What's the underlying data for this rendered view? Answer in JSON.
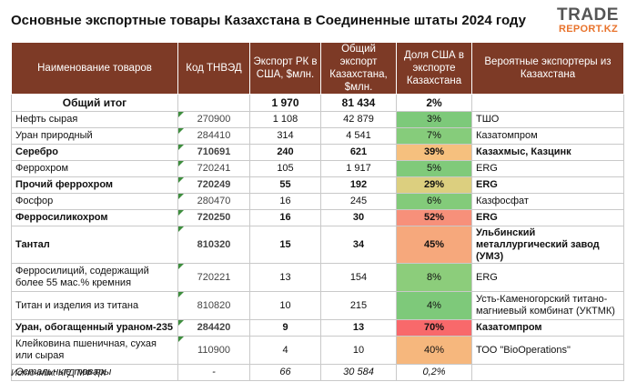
{
  "title": "Основные экспортные товары Казахстана в Соединенные штаты 2024 году",
  "logo": {
    "line1": "TRADE",
    "line2": "REPORT.KZ"
  },
  "chart_data": {
    "type": "table",
    "columns": [
      "Наименование товаров",
      "Код ТНВЭД",
      "Экспорт РК в США, $млн.",
      "Общий экспорт Казахстана, $млн.",
      "Доля США в экспорте Казахстана",
      "Вероятные экспортеры из Казахстана"
    ],
    "rows": [
      {
        "name": "Общий итог",
        "code": "",
        "us": "1 970",
        "total": "81 434",
        "share": "2%",
        "exporters": "",
        "kind": "total",
        "color": ""
      },
      {
        "name": "Нефть сырая",
        "code": "270900",
        "us": "1 108",
        "total": "42 879",
        "share": "3%",
        "exporters": "ТШО",
        "kind": "normal",
        "color": "#7dc97a"
      },
      {
        "name": "Уран природный",
        "code": "284410",
        "us": "314",
        "total": "4 541",
        "share": "7%",
        "exporters": "Казатомпром",
        "kind": "normal",
        "color": "#86cc7b"
      },
      {
        "name": "Серебро",
        "code": "710691",
        "us": "240",
        "total": "621",
        "share": "39%",
        "exporters": "Казахмыс, Казцинк",
        "kind": "bold",
        "color": "#f6c07e"
      },
      {
        "name": "Феррохром",
        "code": "720241",
        "us": "105",
        "total": "1 917",
        "share": "5%",
        "exporters": "ERG",
        "kind": "normal",
        "color": "#80ca7a"
      },
      {
        "name": "Прочий феррохром",
        "code": "720249",
        "us": "55",
        "total": "192",
        "share": "29%",
        "exporters": "ERG",
        "kind": "bold",
        "color": "#dccf7f"
      },
      {
        "name": "Фосфор",
        "code": "280470",
        "us": "16",
        "total": "245",
        "share": "6%",
        "exporters": "Казфосфат",
        "kind": "normal",
        "color": "#83cb7a"
      },
      {
        "name": "Ферросиликохром",
        "code": "720250",
        "us": "16",
        "total": "30",
        "share": "52%",
        "exporters": "ERG",
        "kind": "bold",
        "color": "#f7907a"
      },
      {
        "name": "Тантал",
        "code": "810320",
        "us": "15",
        "total": "34",
        "share": "45%",
        "exporters": "Ульбинский металлургический завод (УМЗ)",
        "kind": "bold",
        "color": "#f6a87c",
        "h": "r3"
      },
      {
        "name": "Ферросилиций, содержащий более 55 мас.% кремния",
        "code": "720221",
        "us": "13",
        "total": "154",
        "share": "8%",
        "exporters": "ERG",
        "kind": "normal",
        "color": "#8ccd7b",
        "h": "r2"
      },
      {
        "name": "Титан и изделия из титана",
        "code": "810820",
        "us": "10",
        "total": "215",
        "share": "4%",
        "exporters": "Усть-Каменогорский титано-магниевый комбинат (УКТМК)",
        "kind": "normal",
        "color": "#7ec97a",
        "h": "r2"
      },
      {
        "name": "Уран, обогащенный ураном-235",
        "code": "284420",
        "us": "9",
        "total": "13",
        "share": "70%",
        "exporters": "Казатомпром",
        "kind": "bold",
        "color": "#f8696b"
      },
      {
        "name": "Клейковина пшеничная, сухая или сырая",
        "code": "110900",
        "us": "4",
        "total": "10",
        "share": "40%",
        "exporters": "ТОО \"BioOperations\"",
        "kind": "normal",
        "color": "#f6b77d",
        "h": "r2"
      },
      {
        "name": "Остальные товары",
        "code": "-",
        "us": "66",
        "total": "30 584",
        "share": "0,2%",
        "exporters": "",
        "kind": "others",
        "color": ""
      }
    ]
  },
  "source": "Источник: КГД МФ РК"
}
